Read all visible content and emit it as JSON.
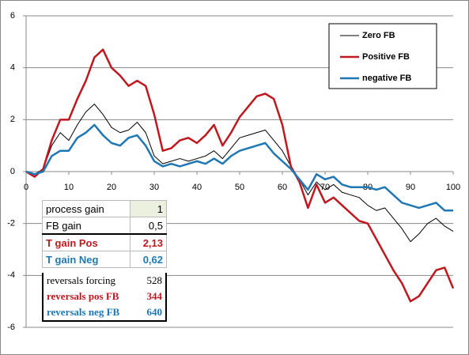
{
  "chart_data": {
    "type": "line",
    "x": [
      0,
      2,
      4,
      6,
      8,
      10,
      12,
      14,
      16,
      18,
      20,
      22,
      24,
      26,
      28,
      30,
      32,
      34,
      36,
      38,
      40,
      42,
      44,
      46,
      48,
      50,
      52,
      54,
      56,
      58,
      60,
      62,
      64,
      66,
      68,
      70,
      72,
      74,
      76,
      78,
      80,
      82,
      84,
      86,
      88,
      90,
      92,
      94,
      96,
      98,
      100
    ],
    "series": [
      {
        "name": "Zero FB",
        "color": "#000000",
        "width": 1,
        "values": [
          0,
          -0.1,
          0.1,
          1.0,
          1.5,
          1.2,
          1.8,
          2.3,
          2.6,
          2.2,
          1.7,
          1.5,
          1.6,
          1.9,
          1.5,
          0.6,
          0.3,
          0.4,
          0.5,
          0.4,
          0.5,
          0.6,
          0.8,
          0.5,
          0.9,
          1.3,
          1.4,
          1.5,
          1.6,
          1.2,
          0.8,
          0.2,
          -0.3,
          -0.9,
          -0.4,
          -0.7,
          -0.5,
          -0.8,
          -0.9,
          -1.0,
          -1.3,
          -1.5,
          -1.4,
          -1.8,
          -2.2,
          -2.7,
          -2.4,
          -2.0,
          -1.8,
          -2.1,
          -2.3
        ]
      },
      {
        "name": "Positive FB",
        "color": "#c0181e",
        "width": 2.5,
        "values": [
          0,
          -0.2,
          0.1,
          1.2,
          2.0,
          2.0,
          2.8,
          3.5,
          4.4,
          4.7,
          4.0,
          3.7,
          3.3,
          3.5,
          3.3,
          2.2,
          0.8,
          0.9,
          1.2,
          1.3,
          1.1,
          1.4,
          1.8,
          1.0,
          1.5,
          2.1,
          2.5,
          2.9,
          3.0,
          2.8,
          1.8,
          0.2,
          -0.4,
          -1.4,
          -0.5,
          -1.2,
          -1.0,
          -1.3,
          -1.6,
          -1.9,
          -2.0,
          -2.6,
          -3.2,
          -3.8,
          -4.3,
          -5.0,
          -4.8,
          -4.3,
          -3.8,
          -3.7,
          -4.5
        ]
      },
      {
        "name": "negative FB",
        "color": "#1f77b4",
        "width": 2.5,
        "values": [
          0,
          -0.1,
          0,
          0.6,
          0.8,
          0.8,
          1.3,
          1.5,
          1.8,
          1.4,
          1.1,
          1.0,
          1.3,
          1.4,
          1.0,
          0.4,
          0.2,
          0.3,
          0.2,
          0.3,
          0.4,
          0.3,
          0.5,
          0.3,
          0.6,
          0.8,
          0.9,
          1.0,
          1.1,
          0.7,
          0.4,
          0.1,
          -0.3,
          -0.7,
          -0.1,
          -0.3,
          -0.2,
          -0.5,
          -0.6,
          -0.6,
          -0.6,
          -0.7,
          -0.6,
          -0.9,
          -1.2,
          -1.3,
          -1.4,
          -1.3,
          -1.2,
          -1.5,
          -1.5
        ]
      }
    ],
    "xlim": [
      0,
      100
    ],
    "xticks": [
      0,
      10,
      20,
      30,
      40,
      50,
      60,
      70,
      80,
      90,
      100
    ],
    "ylim": [
      -6,
      6
    ],
    "yticks": [
      -6,
      -4,
      -2,
      0,
      2,
      4,
      6
    ],
    "grid": true,
    "legend": "upper right"
  },
  "table": {
    "rows": [
      [
        "process gain",
        "1"
      ],
      [
        "FB gain",
        "0,5"
      ],
      [
        "T gain Pos",
        "2,13"
      ],
      [
        "T gain Neg",
        "0,62"
      ]
    ],
    "rows2": [
      [
        "reversals forcing",
        "528"
      ],
      [
        "reversals pos FB",
        "344"
      ],
      [
        "reversals neg FB",
        "640"
      ]
    ]
  }
}
